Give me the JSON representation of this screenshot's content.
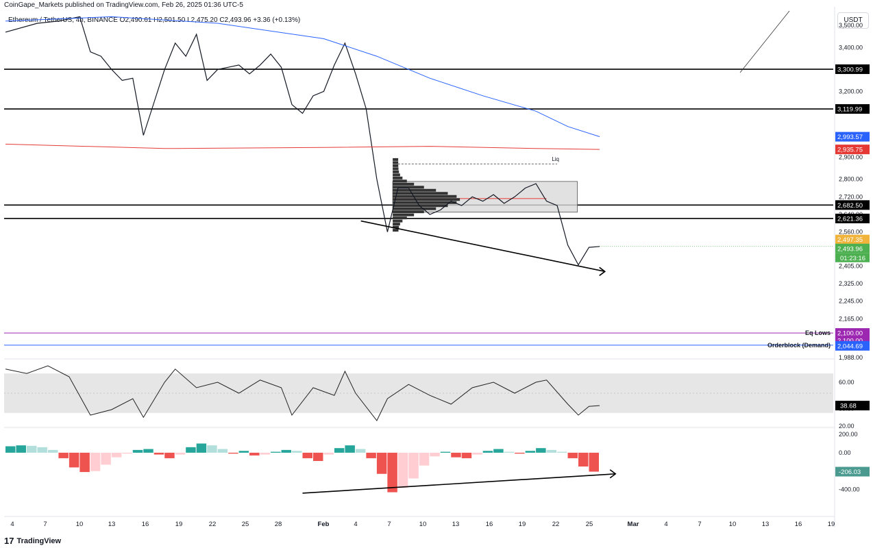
{
  "header": {
    "publisher": "CoinGape_Markets published on TradingView.com, Feb 26, 2025 01:36 UTC-5",
    "symbol_line": "Ethereum / TetherUS, 4h, BINANCE  O2,490.61  H2,501.50  L2,475.20  C2,493.96  +3.36 (+0.13%)",
    "currency": "USDT"
  },
  "footer": {
    "logo_text": "TradingView",
    "logo_icon": "tradingview-logo-icon"
  },
  "chart_data": [
    {
      "type": "line",
      "name": "price-panel",
      "ylim": [
        1988,
        3560
      ],
      "y_ticks": [
        "3,500.00",
        "3,400.00",
        "3,300.00",
        "3,200.00",
        "3,000.00",
        "2,900.00",
        "2,800.00",
        "2,720.00",
        "2,640.00",
        "2,560.00",
        "2,405.00",
        "2,325.00",
        "2,245.00",
        "2,165.00",
        "1,988.00"
      ],
      "x_ticks": [
        "4",
        "7",
        "10",
        "13",
        "16",
        "19",
        "22",
        "25",
        "28",
        "Feb",
        "4",
        "7",
        "10",
        "13",
        "16",
        "19",
        "22",
        "25",
        "Mar",
        "4",
        "7",
        "10",
        "13",
        "16",
        "19"
      ],
      "horizontal_levels": [
        {
          "value": 3300.99,
          "label": "3,300.99",
          "color": "#000000"
        },
        {
          "value": 3119.99,
          "label": "3,119.99",
          "color": "#000000"
        },
        {
          "value": 2682.5,
          "label": "2,682.50",
          "color": "#000000"
        },
        {
          "value": 2621.36,
          "label": "2,621.36",
          "color": "#000000"
        }
      ],
      "price_badges": [
        {
          "value": 2993.57,
          "label": "2,993.57",
          "color": "#2962ff"
        },
        {
          "value": 2935.75,
          "label": "2,935.75",
          "color": "#e53935"
        },
        {
          "value": 2497.35,
          "label": "2,497.35",
          "color": "#f0b43c"
        },
        {
          "value": 2493.96,
          "label": "2,493.96",
          "color": "#4caf50"
        },
        {
          "value": 2100.0,
          "label": "2,100.00",
          "color": "#9c27b0"
        },
        {
          "value": 2044.69,
          "label": "2,044.69",
          "color": "#2962ff"
        }
      ],
      "countdown": "01:23:16",
      "annotations": [
        {
          "text": "Liq"
        },
        {
          "text": "Eq Lows",
          "value": 2100.0
        },
        {
          "text": "Orderblock (Demand)",
          "value": 2044.69
        }
      ],
      "series": [
        {
          "name": "Close",
          "points": [
            [
              0,
              3470
            ],
            [
              3,
              3510
            ],
            [
              5,
              3520
            ],
            [
              7,
              3540
            ],
            [
              8,
              3380
            ],
            [
              9,
              3360
            ],
            [
              10,
              3300
            ],
            [
              11,
              3250
            ],
            [
              12,
              3260
            ],
            [
              13,
              3000
            ],
            [
              14,
              3150
            ],
            [
              15,
              3300
            ],
            [
              16,
              3420
            ],
            [
              17,
              3360
            ],
            [
              18,
              3460
            ],
            [
              19,
              3250
            ],
            [
              20,
              3300
            ],
            [
              21,
              3310
            ],
            [
              22,
              3320
            ],
            [
              23,
              3280
            ],
            [
              24,
              3320
            ],
            [
              25,
              3370
            ],
            [
              26,
              3310
            ],
            [
              27,
              3140
            ],
            [
              28,
              3100
            ],
            [
              29,
              3180
            ],
            [
              30,
              3200
            ],
            [
              31,
              3320
            ],
            [
              32,
              3420
            ],
            [
              33,
              3280
            ],
            [
              34,
              3120
            ],
            [
              35,
              2800
            ],
            [
              36,
              2560
            ],
            [
              37,
              2760
            ],
            [
              38,
              2760
            ],
            [
              39,
              2680
            ],
            [
              40,
              2640
            ],
            [
              41,
              2660
            ],
            [
              42,
              2700
            ],
            [
              43,
              2680
            ],
            [
              44,
              2720
            ],
            [
              45,
              2700
            ],
            [
              46,
              2730
            ],
            [
              47,
              2690
            ],
            [
              48,
              2720
            ],
            [
              49,
              2760
            ],
            [
              50,
              2780
            ],
            [
              51,
              2700
            ],
            [
              52,
              2680
            ],
            [
              53,
              2500
            ],
            [
              54,
              2410
            ],
            [
              55,
              2490
            ],
            [
              56,
              2494
            ]
          ]
        },
        {
          "name": "EMA",
          "points": [
            [
              0,
              3520
            ],
            [
              10,
              3540
            ],
            [
              20,
              3510
            ],
            [
              30,
              3440
            ],
            [
              35,
              3360
            ],
            [
              40,
              3260
            ],
            [
              45,
              3180
            ],
            [
              50,
              3110
            ],
            [
              53,
              3040
            ],
            [
              56,
              2994
            ]
          ]
        },
        {
          "name": "SMA",
          "points": [
            [
              0,
              2960
            ],
            [
              15,
              2940
            ],
            [
              30,
              2945
            ],
            [
              40,
              2950
            ],
            [
              50,
              2940
            ],
            [
              56,
              2936
            ]
          ]
        }
      ]
    },
    {
      "type": "line",
      "name": "rsi-panel",
      "ylim": [
        20,
        80
      ],
      "y_ticks": [
        "60.00",
        "35.80",
        "20.00"
      ],
      "current": "38.68",
      "band": [
        32,
        68
      ],
      "series": [
        {
          "name": "RSI",
          "points": [
            [
              0,
              72
            ],
            [
              2,
              68
            ],
            [
              4,
              75
            ],
            [
              6,
              65
            ],
            [
              8,
              30
            ],
            [
              10,
              35
            ],
            [
              12,
              45
            ],
            [
              13,
              28
            ],
            [
              15,
              60
            ],
            [
              16,
              72
            ],
            [
              18,
              55
            ],
            [
              20,
              60
            ],
            [
              22,
              50
            ],
            [
              24,
              62
            ],
            [
              26,
              55
            ],
            [
              27,
              30
            ],
            [
              29,
              55
            ],
            [
              31,
              48
            ],
            [
              32,
              70
            ],
            [
              33,
              50
            ],
            [
              35,
              25
            ],
            [
              36,
              45
            ],
            [
              38,
              58
            ],
            [
              40,
              48
            ],
            [
              42,
              40
            ],
            [
              44,
              55
            ],
            [
              46,
              60
            ],
            [
              48,
              50
            ],
            [
              50,
              60
            ],
            [
              51,
              62
            ],
            [
              53,
              40
            ],
            [
              54,
              30
            ],
            [
              55,
              38
            ],
            [
              56,
              38.68
            ]
          ]
        }
      ]
    },
    {
      "type": "bar",
      "name": "macd-histogram",
      "ylim": [
        -500,
        260
      ],
      "y_ticks": [
        "200.00",
        "0.00",
        "-400.00"
      ],
      "current": "-206.03",
      "values": [
        70,
        80,
        75,
        60,
        30,
        -60,
        -160,
        -210,
        -200,
        -130,
        -50,
        -10,
        30,
        40,
        -20,
        -60,
        -20,
        60,
        100,
        80,
        40,
        -10,
        20,
        -30,
        -20,
        10,
        30,
        20,
        -60,
        -90,
        -20,
        50,
        80,
        40,
        -60,
        -230,
        -430,
        -380,
        -280,
        -140,
        -40,
        10,
        -50,
        -60,
        -20,
        20,
        40,
        10,
        -10,
        20,
        50,
        30,
        10,
        -60,
        -150,
        -206.03
      ]
    }
  ]
}
